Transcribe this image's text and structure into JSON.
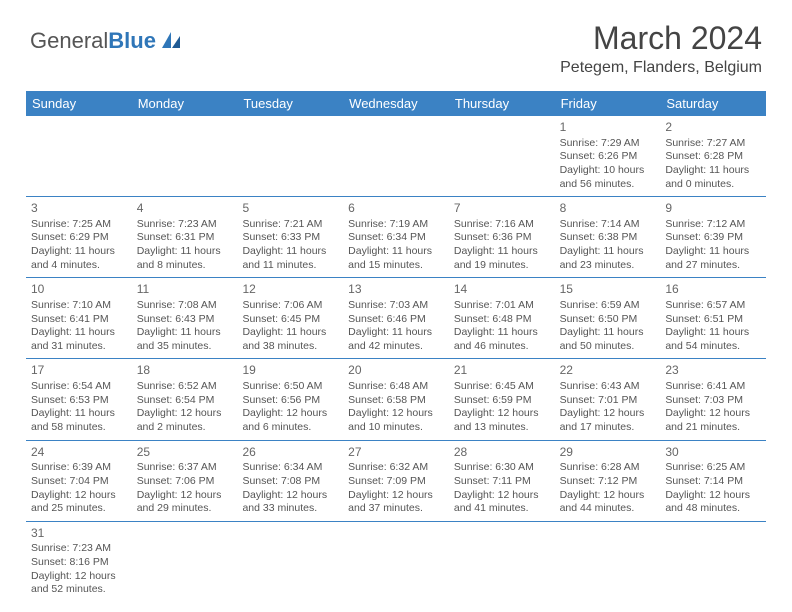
{
  "branding": {
    "logo_general": "General",
    "logo_blue": "Blue",
    "logo_color_gray": "#555555",
    "logo_color_blue": "#2f76b8"
  },
  "title": {
    "month": "March 2024",
    "location": "Petegem, Flanders, Belgium"
  },
  "colors": {
    "header_bg": "#3b82c4",
    "header_text": "#ffffff",
    "divider": "#3b82c4",
    "text": "#555555"
  },
  "daynames": [
    "Sunday",
    "Monday",
    "Tuesday",
    "Wednesday",
    "Thursday",
    "Friday",
    "Saturday"
  ],
  "weeks": [
    [
      {
        "day": "",
        "lines": []
      },
      {
        "day": "",
        "lines": []
      },
      {
        "day": "",
        "lines": []
      },
      {
        "day": "",
        "lines": []
      },
      {
        "day": "",
        "lines": []
      },
      {
        "day": "1",
        "lines": [
          "Sunrise: 7:29 AM",
          "Sunset: 6:26 PM",
          "Daylight: 10 hours",
          "and 56 minutes."
        ]
      },
      {
        "day": "2",
        "lines": [
          "Sunrise: 7:27 AM",
          "Sunset: 6:28 PM",
          "Daylight: 11 hours",
          "and 0 minutes."
        ]
      }
    ],
    [
      {
        "day": "3",
        "lines": [
          "Sunrise: 7:25 AM",
          "Sunset: 6:29 PM",
          "Daylight: 11 hours",
          "and 4 minutes."
        ]
      },
      {
        "day": "4",
        "lines": [
          "Sunrise: 7:23 AM",
          "Sunset: 6:31 PM",
          "Daylight: 11 hours",
          "and 8 minutes."
        ]
      },
      {
        "day": "5",
        "lines": [
          "Sunrise: 7:21 AM",
          "Sunset: 6:33 PM",
          "Daylight: 11 hours",
          "and 11 minutes."
        ]
      },
      {
        "day": "6",
        "lines": [
          "Sunrise: 7:19 AM",
          "Sunset: 6:34 PM",
          "Daylight: 11 hours",
          "and 15 minutes."
        ]
      },
      {
        "day": "7",
        "lines": [
          "Sunrise: 7:16 AM",
          "Sunset: 6:36 PM",
          "Daylight: 11 hours",
          "and 19 minutes."
        ]
      },
      {
        "day": "8",
        "lines": [
          "Sunrise: 7:14 AM",
          "Sunset: 6:38 PM",
          "Daylight: 11 hours",
          "and 23 minutes."
        ]
      },
      {
        "day": "9",
        "lines": [
          "Sunrise: 7:12 AM",
          "Sunset: 6:39 PM",
          "Daylight: 11 hours",
          "and 27 minutes."
        ]
      }
    ],
    [
      {
        "day": "10",
        "lines": [
          "Sunrise: 7:10 AM",
          "Sunset: 6:41 PM",
          "Daylight: 11 hours",
          "and 31 minutes."
        ]
      },
      {
        "day": "11",
        "lines": [
          "Sunrise: 7:08 AM",
          "Sunset: 6:43 PM",
          "Daylight: 11 hours",
          "and 35 minutes."
        ]
      },
      {
        "day": "12",
        "lines": [
          "Sunrise: 7:06 AM",
          "Sunset: 6:45 PM",
          "Daylight: 11 hours",
          "and 38 minutes."
        ]
      },
      {
        "day": "13",
        "lines": [
          "Sunrise: 7:03 AM",
          "Sunset: 6:46 PM",
          "Daylight: 11 hours",
          "and 42 minutes."
        ]
      },
      {
        "day": "14",
        "lines": [
          "Sunrise: 7:01 AM",
          "Sunset: 6:48 PM",
          "Daylight: 11 hours",
          "and 46 minutes."
        ]
      },
      {
        "day": "15",
        "lines": [
          "Sunrise: 6:59 AM",
          "Sunset: 6:50 PM",
          "Daylight: 11 hours",
          "and 50 minutes."
        ]
      },
      {
        "day": "16",
        "lines": [
          "Sunrise: 6:57 AM",
          "Sunset: 6:51 PM",
          "Daylight: 11 hours",
          "and 54 minutes."
        ]
      }
    ],
    [
      {
        "day": "17",
        "lines": [
          "Sunrise: 6:54 AM",
          "Sunset: 6:53 PM",
          "Daylight: 11 hours",
          "and 58 minutes."
        ]
      },
      {
        "day": "18",
        "lines": [
          "Sunrise: 6:52 AM",
          "Sunset: 6:54 PM",
          "Daylight: 12 hours",
          "and 2 minutes."
        ]
      },
      {
        "day": "19",
        "lines": [
          "Sunrise: 6:50 AM",
          "Sunset: 6:56 PM",
          "Daylight: 12 hours",
          "and 6 minutes."
        ]
      },
      {
        "day": "20",
        "lines": [
          "Sunrise: 6:48 AM",
          "Sunset: 6:58 PM",
          "Daylight: 12 hours",
          "and 10 minutes."
        ]
      },
      {
        "day": "21",
        "lines": [
          "Sunrise: 6:45 AM",
          "Sunset: 6:59 PM",
          "Daylight: 12 hours",
          "and 13 minutes."
        ]
      },
      {
        "day": "22",
        "lines": [
          "Sunrise: 6:43 AM",
          "Sunset: 7:01 PM",
          "Daylight: 12 hours",
          "and 17 minutes."
        ]
      },
      {
        "day": "23",
        "lines": [
          "Sunrise: 6:41 AM",
          "Sunset: 7:03 PM",
          "Daylight: 12 hours",
          "and 21 minutes."
        ]
      }
    ],
    [
      {
        "day": "24",
        "lines": [
          "Sunrise: 6:39 AM",
          "Sunset: 7:04 PM",
          "Daylight: 12 hours",
          "and 25 minutes."
        ]
      },
      {
        "day": "25",
        "lines": [
          "Sunrise: 6:37 AM",
          "Sunset: 7:06 PM",
          "Daylight: 12 hours",
          "and 29 minutes."
        ]
      },
      {
        "day": "26",
        "lines": [
          "Sunrise: 6:34 AM",
          "Sunset: 7:08 PM",
          "Daylight: 12 hours",
          "and 33 minutes."
        ]
      },
      {
        "day": "27",
        "lines": [
          "Sunrise: 6:32 AM",
          "Sunset: 7:09 PM",
          "Daylight: 12 hours",
          "and 37 minutes."
        ]
      },
      {
        "day": "28",
        "lines": [
          "Sunrise: 6:30 AM",
          "Sunset: 7:11 PM",
          "Daylight: 12 hours",
          "and 41 minutes."
        ]
      },
      {
        "day": "29",
        "lines": [
          "Sunrise: 6:28 AM",
          "Sunset: 7:12 PM",
          "Daylight: 12 hours",
          "and 44 minutes."
        ]
      },
      {
        "day": "30",
        "lines": [
          "Sunrise: 6:25 AM",
          "Sunset: 7:14 PM",
          "Daylight: 12 hours",
          "and 48 minutes."
        ]
      }
    ],
    [
      {
        "day": "31",
        "lines": [
          "Sunrise: 7:23 AM",
          "Sunset: 8:16 PM",
          "Daylight: 12 hours",
          "and 52 minutes."
        ]
      },
      {
        "day": "",
        "lines": []
      },
      {
        "day": "",
        "lines": []
      },
      {
        "day": "",
        "lines": []
      },
      {
        "day": "",
        "lines": []
      },
      {
        "day": "",
        "lines": []
      },
      {
        "day": "",
        "lines": []
      }
    ]
  ]
}
